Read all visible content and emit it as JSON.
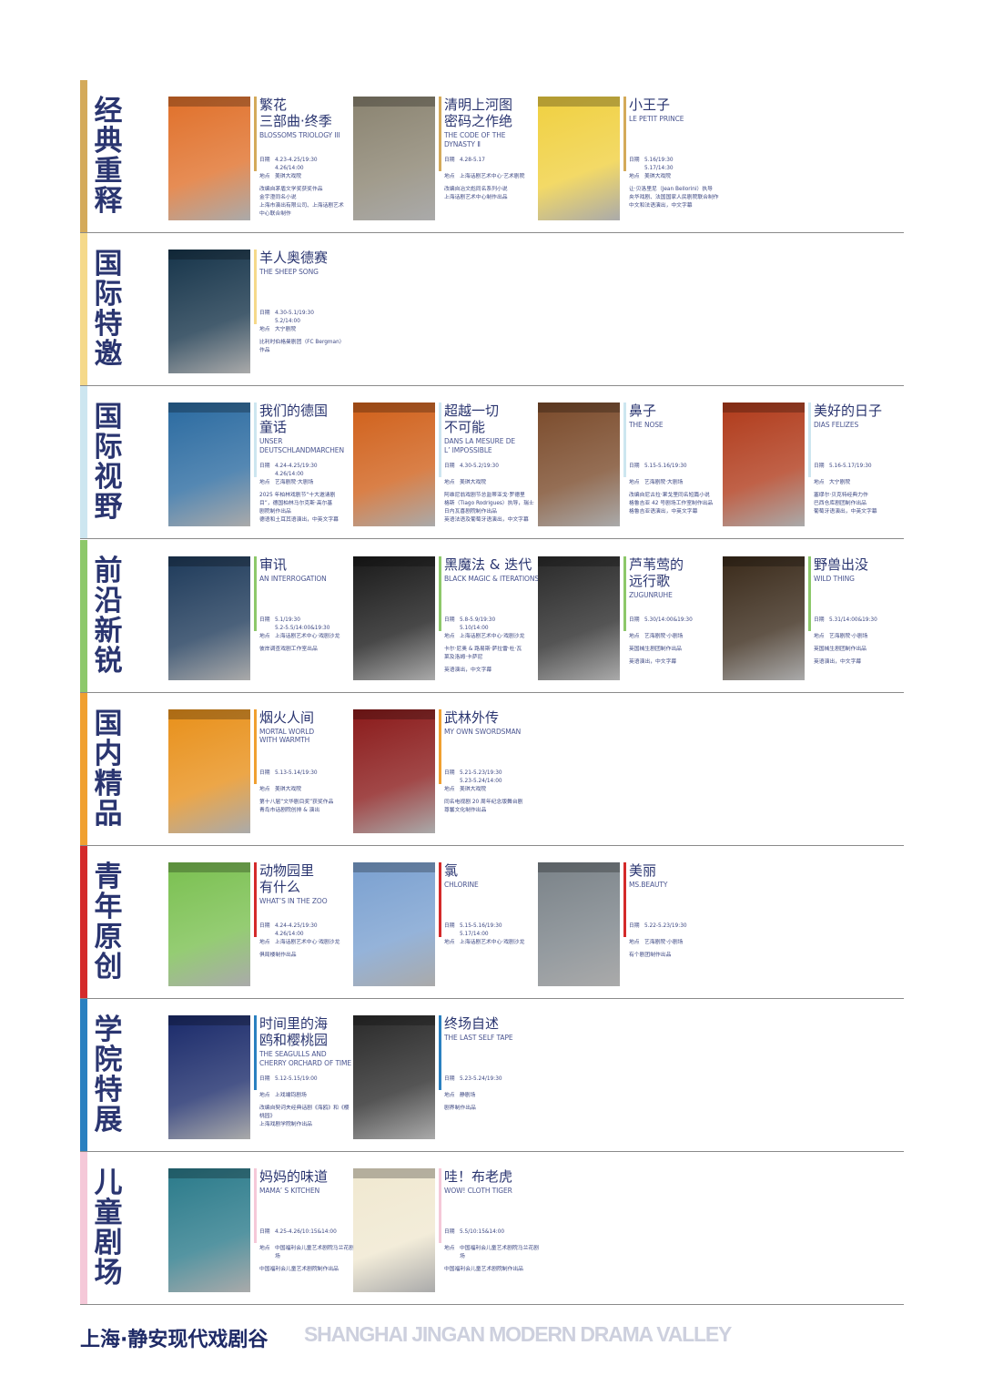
{
  "sections": [
    {
      "label": "经典重释",
      "color": "#d4aa5a",
      "shows": [
        {
          "title": [
            "繁花",
            "三部曲·终季"
          ],
          "en": [
            "BLOSSOMS TRIOLOGY III"
          ],
          "dates": [
            "4.23-4.25/19:30",
            "4.26/14:00"
          ],
          "venue": "美琪大戏院",
          "notes": [
            "改编自茅盾文学奖获奖作品",
            "金宇澄同名小说",
            "上海市演出有限公司、上海话剧艺术",
            "中心联合制作"
          ],
          "poster": "#e0702a"
        },
        {
          "title": [
            "清明上河图",
            "密码之作绝"
          ],
          "en": [
            "THE CODE OF THE",
            "DYNASTY Ⅱ"
          ],
          "dates": [
            "4.28-5.17"
          ],
          "venue": "上海话剧艺术中心·艺术剧院",
          "notes": [
            "改编自冶文彪同名系列小说",
            "上海话剧艺术中心制作出品"
          ],
          "poster": "#8a8370"
        },
        {
          "title": [
            "小王子"
          ],
          "en": [
            "LE PETIT PRINCE"
          ],
          "dates": [
            "5.16/19:30",
            "5.17/14:30"
          ],
          "venue": "美琪大戏院",
          "notes": [
            "让·贝洛里尼（Jean Bellorini）执导",
            "央华戏剧、法国国家人民剧院联合制作",
            "中文和法语演出，中文字幕"
          ],
          "poster": "#f0d040"
        }
      ]
    },
    {
      "label": "国际特邀",
      "color": "#f5d98a",
      "shows": [
        {
          "title": [
            "羊人奥德赛"
          ],
          "en": [
            "THE SHEEP SONG"
          ],
          "dates": [
            "4.30-5.1/19:30",
            "5.2/14:00"
          ],
          "venue": "大宁剧院",
          "notes": [
            "比利时伯格曼剧团（FC Bergman）",
            "作品"
          ],
          "poster": "#16344a"
        }
      ]
    },
    {
      "label": "国际视野",
      "color": "#cde6f0",
      "shows": [
        {
          "title": [
            "我们的德国",
            "童话"
          ],
          "en": [
            "UNSER",
            "DEUTSCHLANDMARCHEN"
          ],
          "dates": [
            "4.24-4.25/19:30",
            "4.26/14:00"
          ],
          "venue": "艺海剧院·大剧场",
          "notes": [
            "2025 年柏林戏剧节“十大邀请剧",
            "目”，德国柏林马尔克斯·高尔基",
            "剧院制作出品",
            "德语和土耳其语演出，中英文字幕"
          ],
          "poster": "#2a6aa0"
        },
        {
          "title": [
            "超越一切",
            "不可能"
          ],
          "en": [
            "DANS LA MESURE DE",
            "L’ IMPOSSIBLE"
          ],
          "dates": [
            "4.30-5.2/19:30"
          ],
          "venue": "美琪大戏院",
          "notes": [
            "阿维尼翁戏剧节总监蒂亚戈·罗德里",
            "格斯（Tiago Rodrigues）执导，瑞士",
            "日内瓦喜剧院制作出品",
            "英语法语及葡萄牙语演出，中文字幕"
          ],
          "poster": "#d0601a"
        },
        {
          "title": [
            "鼻子"
          ],
          "en": [
            "THE NOSE"
          ],
          "dates": [
            "5.15-5.16/19:30"
          ],
          "venue": "艺海剧院·大剧场",
          "notes": [
            "改编自尼古拉·果戈里同名短篇小说",
            "格鲁吉亚 42 号剧场工作室制作出品",
            "格鲁吉亚语演出，中英文字幕"
          ],
          "poster": "#7a4a2a"
        },
        {
          "title": [
            "美好的日子"
          ],
          "en": [
            "DIAS FELIZES"
          ],
          "dates": [
            "5.16-5.17/19:30"
          ],
          "venue": "大宁剧院",
          "notes": [
            "塞缪尔·贝克特经典力作",
            "巴西仓库剧团制作出品",
            "葡萄牙语演出，中英文字幕"
          ],
          "poster": "#b03a1a"
        }
      ]
    },
    {
      "label": "前沿新锐",
      "color": "#8dc86a",
      "shows": [
        {
          "title": [
            "审讯"
          ],
          "en": [
            "AN INTERROGATION"
          ],
          "dates": [
            "5.1/19:30",
            "5.2-5.5/14:00&19:30"
          ],
          "venue": "上海话剧艺术中心·戏剧沙龙",
          "notes": [
            "彼岸调查戏剧工作室出品"
          ],
          "poster": "#1e3a5a"
        },
        {
          "title": [
            "黑魔法 & 迭代"
          ],
          "en": [
            "BLACK MAGIC & ITERATIONS"
          ],
          "dates": [
            "5.8-5.9/19:30",
            "5.10/14:00"
          ],
          "venue": "上海话剧艺术中心·戏剧沙龙",
          "notes": [
            "卡尔·尼奥 & 路易斯·萨拉雷·杜·瓦",
            "莱及洛姆·卡萨尼",
            "",
            "英语演出，中文字幕"
          ],
          "poster": "#1a1a1a"
        },
        {
          "title": [
            "芦苇莺的",
            "远行歌"
          ],
          "en": [
            "ZUGUNRUHE"
          ],
          "dates": [
            "5.30/14:00&19:30"
          ],
          "venue": "艺海剧院·小剧场",
          "notes": [
            "英国械生剧团制作出品",
            "",
            "英语演出，中文字幕"
          ],
          "poster": "#2a2a2a"
        },
        {
          "title": [
            "野兽出没"
          ],
          "en": [
            "WILD THING"
          ],
          "dates": [
            "5.31/14:00&19:30"
          ],
          "venue": "艺海剧院·小剧场",
          "notes": [
            "英国械生剧团制作出品",
            "",
            "英语演出，中文字幕"
          ],
          "poster": "#3a2a1a"
        }
      ]
    },
    {
      "label": "国内精品",
      "color": "#f0a030",
      "shows": [
        {
          "title": [
            "烟火人间"
          ],
          "en": [
            "MORTAL WORLD",
            "WITH WARMTH"
          ],
          "dates": [
            "5.13-5.14/19:30"
          ],
          "venue": "美琪大戏院",
          "notes": [
            "第十八届“文华剧目奖”获奖作品",
            "青岛市话剧院创排 & 演出"
          ],
          "poster": "#e8901a"
        },
        {
          "title": [
            "武林外传"
          ],
          "en": [
            "MY OWN SWORDSMAN"
          ],
          "dates": [
            "5.21-5.23/19:30",
            "5.23-5.24/14:00"
          ],
          "venue": "美琪大戏院",
          "notes": [
            "同名电视剧 20 周年纪念版舞台剧",
            "尊馨文化制作出品"
          ],
          "poster": "#8a1a1a"
        }
      ]
    },
    {
      "label": "青年原创",
      "color": "#d42a2a",
      "shows": [
        {
          "title": [
            "动物园里",
            "有什么"
          ],
          "en": [
            "WHAT’S IN THE ZOO"
          ],
          "dates": [
            "4.24-4.25/19:30",
            "4.26/14:00"
          ],
          "venue": "上海话剧艺术中心·戏剧沙龙",
          "notes": [
            "俱局楼制作出品"
          ],
          "poster": "#7ac050"
        },
        {
          "title": [
            "氯"
          ],
          "en": [
            "CHLORINE"
          ],
          "dates": [
            "5.15-5.16/19:30",
            "5.17/14:00"
          ],
          "venue": "上海话剧艺术中心·戏剧沙龙",
          "notes": [],
          "poster": "#7aa0d0"
        },
        {
          "title": [
            "美丽"
          ],
          "en": [
            "MS.BEAUTY"
          ],
          "dates": [
            "5.22-5.23/19:30"
          ],
          "venue": "艺海剧院·小剧场",
          "notes": [
            "有个剧团制作出品"
          ],
          "poster": "#7a8288"
        }
      ]
    },
    {
      "label": "学院特展",
      "color": "#2a80c0",
      "shows": [
        {
          "title": [
            "时间里的海",
            "鸥和樱桃园"
          ],
          "en": [
            "THE SEAGULLS AND",
            "CHERRY ORCHARD OF TIME"
          ],
          "dates": [
            "5.12-5.15/19:00"
          ],
          "venue": "上戏端钧剧场",
          "notes": [
            "改编自契诃夫经典话剧《海鸥》和《樱",
            "桃园》",
            "上海戏剧学院制作出品"
          ],
          "poster": "#1a2a6a"
        },
        {
          "title": [
            "终场自述"
          ],
          "en": [
            "THE LAST SELF TAPE"
          ],
          "dates": [
            "5.23-5.24/19:30"
          ],
          "venue": "静剧场",
          "notes": [
            "剧界制作出品"
          ],
          "poster": "#2a2a2a"
        }
      ]
    },
    {
      "label": "儿童剧场",
      "color": "#f5c8d8",
      "shows": [
        {
          "title": [
            "妈妈的味道"
          ],
          "en": [
            "MAMA’ S KITCHEN"
          ],
          "dates": [
            "4.25-4.26/10:15&14:00"
          ],
          "venue": "中国福利会儿童艺术剧院马兰花剧场",
          "notes": [
            "中国福利会儿童艺术剧院制作出品"
          ],
          "poster": "#2a7a8a"
        },
        {
          "title": [
            "哇！布老虎"
          ],
          "en": [
            "WOW! CLOTH TIGER"
          ],
          "dates": [
            "5.5/10:15&14:00"
          ],
          "venue": "中国福利会儿童艺术剧院马兰花剧场",
          "notes": [
            "中国福利会儿童艺术剧院制作出品"
          ],
          "poster": "#f0e8d0"
        }
      ]
    }
  ],
  "labels": {
    "date": "日期",
    "venue": "地点"
  },
  "footer": {
    "cn": "上海·静安现代戏剧谷",
    "en": "SHANGHAI JINGAN MODERN DRAMA VALLEY"
  }
}
